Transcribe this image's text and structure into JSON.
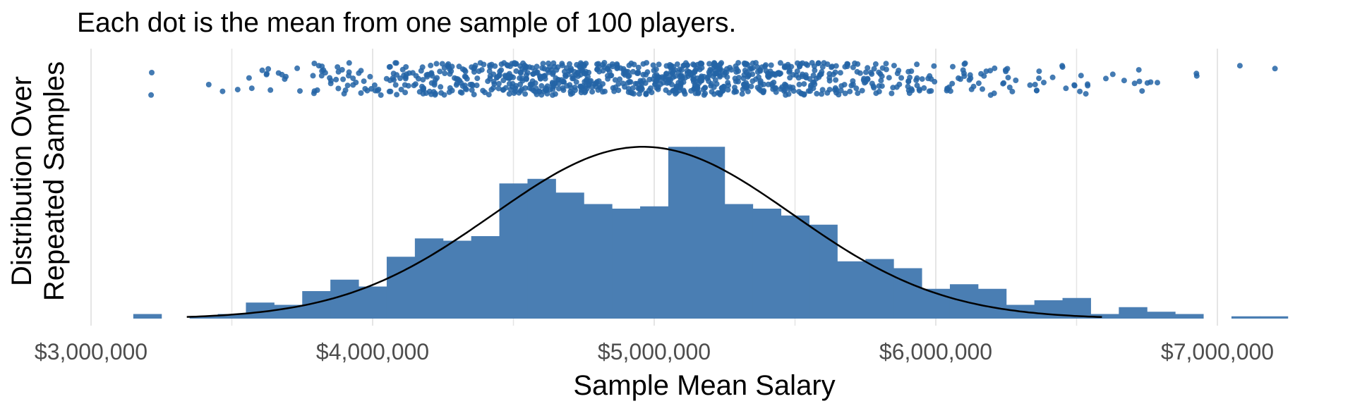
{
  "chart_data": {
    "type": "bar",
    "title": "Each dot is the mean from one sample of 100 players.",
    "xlabel": "Sample Mean Salary",
    "ylabel": [
      "Distribution Over",
      "Repeated Samples"
    ],
    "xlim": [
      3000000,
      7000000
    ],
    "x_ticks": [
      3000000,
      4000000,
      5000000,
      6000000,
      7000000
    ],
    "x_tick_labels": [
      "$3,000,000",
      "$4,000,000",
      "$5,000,000",
      "$6,000,000",
      "$7,000,000"
    ],
    "grid": true,
    "bin_width": 100000,
    "bin_centers": [
      3200000,
      3300000,
      3400000,
      3500000,
      3600000,
      3700000,
      3800000,
      3900000,
      4000000,
      4100000,
      4200000,
      4300000,
      4400000,
      4500000,
      4600000,
      4700000,
      4800000,
      4900000,
      5000000,
      5100000,
      5200000,
      5300000,
      5400000,
      5500000,
      5600000,
      5700000,
      5800000,
      5900000,
      6000000,
      6100000,
      6200000,
      6300000,
      6400000,
      6500000,
      6600000,
      6700000,
      6800000,
      6900000,
      7000000,
      7100000,
      7200000
    ],
    "counts": [
      2,
      0,
      1,
      2,
      7,
      6,
      12,
      17,
      14,
      27,
      35,
      34,
      36,
      59,
      61,
      55,
      50,
      48,
      49,
      75,
      75,
      50,
      48,
      45,
      41,
      25,
      26,
      22,
      13,
      15,
      13,
      6,
      8,
      9,
      2,
      5,
      3,
      2,
      0,
      1,
      1
    ],
    "normal_curve": {
      "mean": 4960000,
      "sd": 532000,
      "n": 1000,
      "x_range": [
        3340000,
        6590000
      ]
    },
    "strip_points": {
      "count": 1000,
      "description_source": "one dot per sample mean"
    },
    "colors": {
      "bars": "#4a7eb3",
      "dots": "#2364a6",
      "curve": "#000000",
      "grid": "#e5e5e5"
    }
  }
}
